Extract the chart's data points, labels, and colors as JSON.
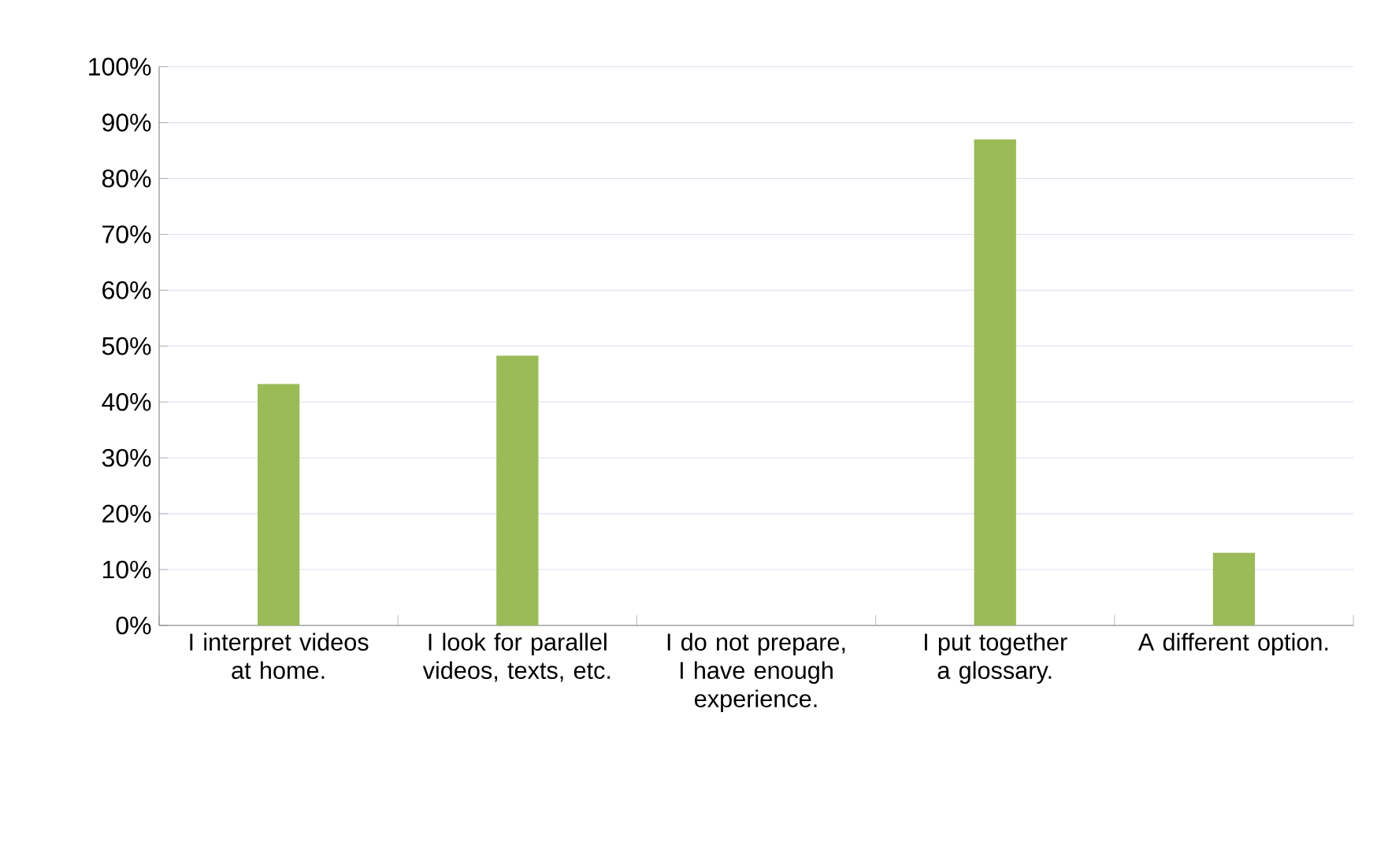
{
  "chart_data": {
    "type": "bar",
    "categories": [
      "I interpret videos at home.",
      "I look for parallel videos, texts, etc.",
      "I do not prepare, I have enough experience.",
      "I put together a glossary.",
      "A different option."
    ],
    "values": [
      43.2,
      48.3,
      0,
      87.0,
      13.0
    ],
    "color": "#9bbb59",
    "ylim": [
      0,
      100
    ],
    "yticks": [
      {
        "value": 0,
        "label": "0%"
      },
      {
        "value": 10,
        "label": "10%"
      },
      {
        "value": 20,
        "label": "20%"
      },
      {
        "value": 30,
        "label": "30%"
      },
      {
        "value": 40,
        "label": "40%"
      },
      {
        "value": 50,
        "label": "50%"
      },
      {
        "value": 60,
        "label": "60%"
      },
      {
        "value": 70,
        "label": "70%"
      },
      {
        "value": 80,
        "label": "80%"
      },
      {
        "value": 90,
        "label": "90%"
      },
      {
        "value": 100,
        "label": "100%"
      }
    ],
    "grid": "y"
  }
}
